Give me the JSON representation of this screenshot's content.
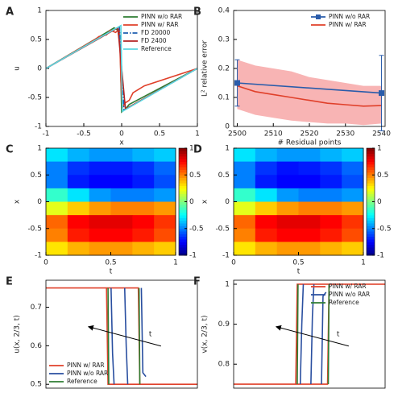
{
  "chart_data": [
    {
      "panel": "A",
      "type": "line",
      "xlabel": "x",
      "ylabel": "u",
      "xlim": [
        -1,
        1
      ],
      "ylim": [
        -1,
        1
      ],
      "xticks": [
        -1,
        -0.5,
        0,
        0.5,
        1
      ],
      "yticks": [
        -1,
        -0.5,
        0,
        0.5,
        1
      ],
      "legend": "upper right",
      "series": [
        {
          "name": "PINN w/o RAR",
          "color": "#2e7d32",
          "style": "solid",
          "x": [
            -1,
            -0.2,
            -0.1,
            -0.05,
            -0.02,
            0.0,
            0.05,
            0.1,
            1
          ],
          "values": [
            0,
            0.62,
            0.7,
            0.66,
            0.4,
            -0.75,
            -0.7,
            -0.62,
            0
          ]
        },
        {
          "name": "PINN w/ RAR",
          "color": "#e0402a",
          "style": "solid",
          "x": [
            -1,
            -0.35,
            -0.3,
            -0.2,
            -0.15,
            -0.08,
            -0.03,
            -0.01,
            0.01,
            0.04,
            0.1,
            0.15,
            0.3,
            1
          ],
          "values": [
            0,
            0.5,
            0.55,
            0.58,
            0.66,
            0.62,
            0.68,
            -0.2,
            -0.68,
            -0.6,
            -0.55,
            -0.42,
            -0.3,
            0
          ]
        },
        {
          "name": "FD 20000",
          "color": "#1f5fb0",
          "style": "dashdot",
          "x": [
            -1,
            -0.03,
            0.0,
            0.03,
            1
          ],
          "values": [
            0,
            0.72,
            0,
            -0.72,
            0
          ]
        },
        {
          "name": "FD 2400",
          "color": "#b22222",
          "style": "solid",
          "x": [
            -1,
            -0.05,
            0.0,
            0.05,
            1
          ],
          "values": [
            0,
            0.7,
            0,
            -0.7,
            0
          ]
        },
        {
          "name": "Reference",
          "color": "#5ad6e0",
          "style": "solid",
          "x": [
            -1,
            -0.01,
            0.01,
            1
          ],
          "values": [
            0,
            0.74,
            -0.74,
            0
          ]
        }
      ]
    },
    {
      "panel": "B",
      "type": "line",
      "xlabel": "# Residual points",
      "ylabel": "L² relative error",
      "xlim": [
        2499,
        2541
      ],
      "ylim": [
        0,
        0.4
      ],
      "xticks": [
        2500,
        2510,
        2520,
        2530,
        2540
      ],
      "yticks": [
        0,
        0.1,
        0.2,
        0.3,
        0.4
      ],
      "legend": "upper right",
      "series": [
        {
          "name": "PINN w/o RAR",
          "color": "#2a5caa",
          "style": "solid",
          "marker": "square",
          "x": [
            2500,
            2540
          ],
          "values": [
            0.15,
            0.115
          ],
          "errors": [
            0.08,
            0.13
          ]
        },
        {
          "name": "PINN w/ RAR",
          "color": "#e0402a",
          "style": "solid",
          "x": [
            2500,
            2505,
            2510,
            2515,
            2520,
            2525,
            2530,
            2535,
            2540
          ],
          "values": [
            0.14,
            0.12,
            0.11,
            0.1,
            0.09,
            0.08,
            0.075,
            0.07,
            0.072
          ],
          "lower": [
            0.06,
            0.04,
            0.03,
            0.02,
            0.015,
            0.01,
            0.01,
            0.005,
            0.01
          ],
          "upper": [
            0.23,
            0.21,
            0.2,
            0.19,
            0.17,
            0.16,
            0.15,
            0.14,
            0.14
          ],
          "band_color": "#f8b4b4"
        }
      ]
    },
    {
      "panel": "C",
      "type": "heatmap",
      "xlabel": "t",
      "ylabel": "x",
      "xlim": [
        0,
        1
      ],
      "ylim": [
        -1,
        1
      ],
      "xticks": [
        0,
        0.5,
        1
      ],
      "yticks": [
        -1,
        -0.5,
        0,
        0.5,
        1
      ],
      "clim": [
        -1,
        1
      ],
      "cticks": [
        -1,
        -0.5,
        0,
        0.5,
        1
      ],
      "z": [
        [
          -0.3,
          -0.4,
          -0.45,
          -0.45,
          -0.4,
          -0.35
        ],
        [
          -0.5,
          -0.65,
          -0.7,
          -0.7,
          -0.65,
          -0.55
        ],
        [
          -0.5,
          -0.7,
          -0.75,
          -0.75,
          -0.7,
          -0.6
        ],
        [
          -0.15,
          -0.3,
          -0.45,
          -0.5,
          -0.5,
          -0.45
        ],
        [
          0.2,
          0.35,
          0.45,
          0.5,
          0.5,
          0.45
        ],
        [
          0.55,
          0.75,
          0.8,
          0.8,
          0.75,
          0.65
        ],
        [
          0.5,
          0.7,
          0.75,
          0.75,
          0.7,
          0.6
        ],
        [
          0.3,
          0.4,
          0.45,
          0.45,
          0.4,
          0.35
        ]
      ]
    },
    {
      "panel": "D",
      "type": "heatmap",
      "xlabel": "t",
      "ylabel": "x",
      "xlim": [
        0,
        1
      ],
      "ylim": [
        -1,
        1
      ],
      "xticks": [
        0,
        0.5,
        1
      ],
      "yticks": [
        -1,
        -0.5,
        0,
        0.5,
        1
      ],
      "clim": [
        -1,
        1
      ],
      "cticks": [
        -1,
        -0.5,
        0,
        0.5,
        1
      ],
      "z": [
        [
          -0.3,
          -0.4,
          -0.45,
          -0.45,
          -0.4,
          -0.35
        ],
        [
          -0.5,
          -0.65,
          -0.72,
          -0.7,
          -0.65,
          -0.55
        ],
        [
          -0.5,
          -0.7,
          -0.75,
          -0.75,
          -0.7,
          -0.6
        ],
        [
          -0.15,
          -0.3,
          -0.45,
          -0.5,
          -0.5,
          -0.45
        ],
        [
          0.2,
          0.35,
          0.45,
          0.5,
          0.5,
          0.45
        ],
        [
          0.55,
          0.75,
          0.8,
          0.8,
          0.75,
          0.65
        ],
        [
          0.5,
          0.7,
          0.75,
          0.75,
          0.7,
          0.6
        ],
        [
          0.3,
          0.4,
          0.45,
          0.45,
          0.4,
          0.35
        ]
      ]
    },
    {
      "panel": "E",
      "type": "line",
      "ylabel": "u(x, 2/3, t)",
      "xlim": [
        0,
        1
      ],
      "ylim": [
        0.49,
        0.77
      ],
      "yticks": [
        0.5,
        0.6,
        0.7
      ],
      "legend": "lower left",
      "annotation": "t",
      "series": [
        {
          "name": "PINN w/ RAR",
          "color": "#e0402a",
          "style": "solid",
          "x": [
            0,
            0.4,
            0.41,
            1,
            null,
            0,
            0.61,
            0.62,
            1
          ],
          "values": [
            0.75,
            0.75,
            0.5,
            0.5,
            null,
            0.75,
            0.75,
            0.5,
            0.5
          ]
        },
        {
          "name": "PINN w/o RAR",
          "color": "#2a4fa0",
          "style": "solid",
          "x": [
            0.43,
            0.44,
            0.45,
            null,
            0.52,
            0.53,
            0.54,
            null,
            0.63,
            0.64,
            0.66
          ],
          "values": [
            0.75,
            0.58,
            0.5,
            null,
            0.75,
            0.6,
            0.5,
            null,
            0.75,
            0.53,
            0.52
          ]
        },
        {
          "name": "Reference",
          "color": "#2e7d32",
          "style": "solid",
          "x": [
            0.41,
            0.415,
            null,
            0.615,
            0.62
          ],
          "values": [
            0.75,
            0.5,
            null,
            0.75,
            0.5
          ]
        }
      ]
    },
    {
      "panel": "F",
      "type": "line",
      "ylabel": "v(x, 2/3, t)",
      "xlim": [
        0,
        1
      ],
      "ylim": [
        0.74,
        1.01
      ],
      "yticks": [
        0.8,
        0.9,
        1
      ],
      "legend": "upper right",
      "annotation": "t",
      "series": [
        {
          "name": "PINN w/ RAR",
          "color": "#e0402a",
          "style": "solid",
          "x": [
            0,
            0.41,
            0.42,
            1,
            null,
            0,
            0.62,
            0.63,
            1
          ],
          "values": [
            0.75,
            0.75,
            1,
            1,
            null,
            0.75,
            0.75,
            1,
            1
          ]
        },
        {
          "name": "PINN w/o RAR",
          "color": "#2a4fa0",
          "style": "solid",
          "x": [
            0.44,
            0.45,
            0.46,
            null,
            0.51,
            0.52,
            0.53,
            null,
            0.58,
            0.59,
            0.61
          ],
          "values": [
            0.75,
            0.9,
            1,
            null,
            0.75,
            0.92,
            1,
            null,
            0.75,
            0.97,
            0.98
          ]
        },
        {
          "name": "Reference",
          "color": "#2e7d32",
          "style": "solid",
          "x": [
            0.42,
            0.425,
            null,
            0.625,
            0.63
          ],
          "values": [
            0.75,
            1,
            null,
            0.75,
            1
          ]
        }
      ]
    }
  ]
}
